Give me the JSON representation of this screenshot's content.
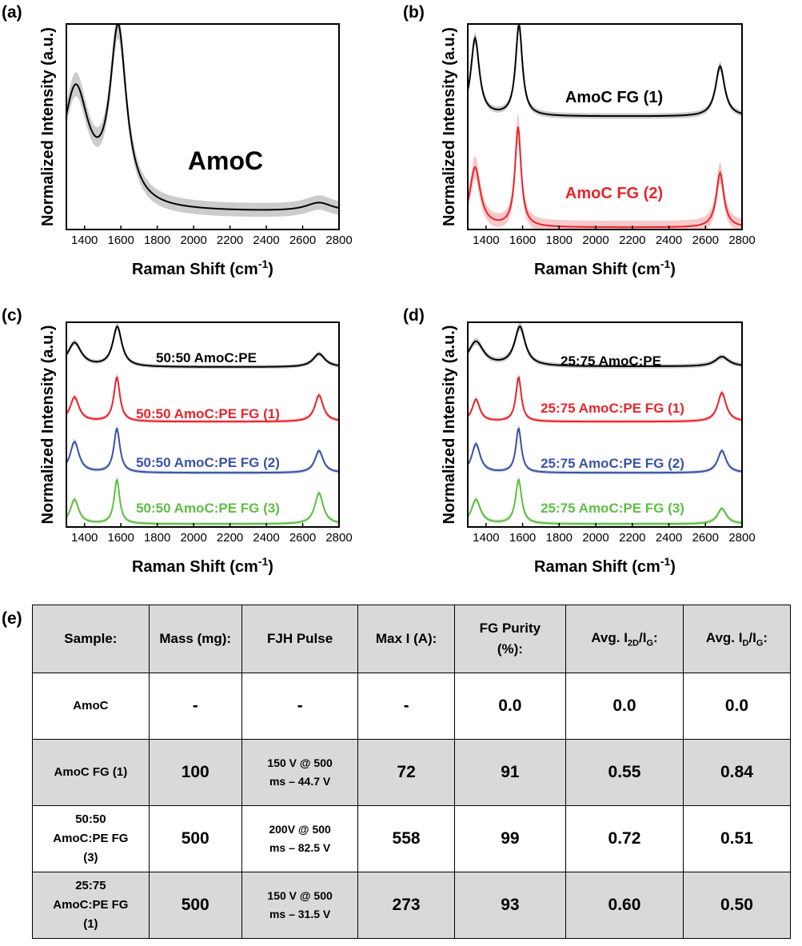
{
  "panels": [
    {
      "label": "(a)",
      "xlabel": "Raman Shift (cm",
      "xlabel_sup": "-1",
      "xlabel_end": ")",
      "ylabel": "Normalized Intensity (a.u.)",
      "ticks": [
        "1400",
        "1600",
        "1800",
        "2000",
        "2200",
        "2400",
        "2600",
        "2800"
      ],
      "annotations": [
        {
          "text": "AmoC",
          "color": "#000000"
        }
      ]
    },
    {
      "label": "(b)",
      "xlabel": "Raman Shift (cm",
      "xlabel_sup": "-1",
      "xlabel_end": ")",
      "ylabel": "Normalized Intensity (a.u.)",
      "ticks": [
        "1400",
        "1600",
        "1800",
        "2000",
        "2200",
        "2400",
        "2600",
        "2800"
      ],
      "annotations": [
        {
          "text": "AmoC FG (1)",
          "color": "#000000"
        },
        {
          "text": "AmoC FG (2)",
          "color": "#e8242b"
        }
      ]
    },
    {
      "label": "(c)",
      "xlabel": "Raman Shift (cm",
      "xlabel_sup": "-1",
      "xlabel_end": ")",
      "ylabel": "Normalized Intensity (a.u.)",
      "ticks": [
        "1400",
        "1600",
        "1800",
        "2000",
        "2200",
        "2400",
        "2600",
        "2800"
      ],
      "annotations": [
        {
          "text": "50:50 AmoC:PE",
          "color": "#000000"
        },
        {
          "text": "50:50 AmoC:PE FG (1)",
          "color": "#e8242b"
        },
        {
          "text": "50:50 AmoC:PE FG (2)",
          "color": "#3953a4"
        },
        {
          "text": "50:50 AmoC:PE FG (3)",
          "color": "#5ebd45"
        }
      ]
    },
    {
      "label": "(d)",
      "xlabel": "Raman Shift (cm",
      "xlabel_sup": "-1",
      "xlabel_end": ")",
      "ylabel": "Normalized Intensity (a.u.)",
      "ticks": [
        "1400",
        "1600",
        "1800",
        "2000",
        "2200",
        "2400",
        "2600",
        "2800"
      ],
      "annotations": [
        {
          "text": "25:75 AmoC:PE",
          "color": "#000000"
        },
        {
          "text": "25:75 AmoC:PE FG (1)",
          "color": "#e8242b"
        },
        {
          "text": "25:75 AmoC:PE FG (2)",
          "color": "#3953a4"
        },
        {
          "text": "25:75 AmoC:PE FG (3)",
          "color": "#5ebd45"
        }
      ]
    }
  ],
  "chart_data": [
    {
      "type": "line",
      "panel": "(a)",
      "xlabel": "Raman Shift (cm-1)",
      "ylabel": "Normalized Intensity (a.u.)",
      "xlim": [
        1300,
        2800
      ],
      "series": [
        {
          "name": "AmoC",
          "color": "#000000",
          "offset": 0,
          "scale": 1.0,
          "base": 0.08,
          "peaks": [
            {
              "center": 1350,
              "height": 0.55,
              "width": 90
            },
            {
              "center": 1585,
              "height": 0.8,
              "width": 55
            },
            {
              "center": 2690,
              "height": 0.04,
              "width": 90
            }
          ],
          "band": 0.05
        }
      ]
    },
    {
      "type": "line",
      "panel": "(b)",
      "xlabel": "Raman Shift (cm-1)",
      "ylabel": "Normalized Intensity (a.u.)",
      "xlim": [
        1300,
        2800
      ],
      "series": [
        {
          "name": "AmoC FG (1)",
          "color": "#000000",
          "offset": 0.55,
          "scale": 0.45,
          "base": 0.0,
          "peaks": [
            {
              "center": 1340,
              "height": 0.85,
              "width": 28
            },
            {
              "center": 1580,
              "height": 1.0,
              "width": 22
            },
            {
              "center": 2680,
              "height": 0.55,
              "width": 30
            }
          ],
          "band": 0.05
        },
        {
          "name": "AmoC FG (2)",
          "color": "#e8242b",
          "offset": 0.0,
          "scale": 0.5,
          "base": 0.02,
          "peaks": [
            {
              "center": 1340,
              "height": 0.6,
              "width": 35
            },
            {
              "center": 1575,
              "height": 1.0,
              "width": 20
            },
            {
              "center": 2680,
              "height": 0.55,
              "width": 25
            }
          ],
          "band": 0.1
        }
      ]
    },
    {
      "type": "line",
      "panel": "(c)",
      "xlabel": "Raman Shift (cm-1)",
      "ylabel": "Normalized Intensity (a.u.)",
      "xlim": [
        1300,
        2800
      ],
      "series": [
        {
          "name": "50:50 AmoC:PE",
          "color": "#000000",
          "offset": 0.76,
          "scale": 0.22,
          "base": 0.08,
          "peaks": [
            {
              "center": 1345,
              "height": 0.45,
              "width": 45
            },
            {
              "center": 1580,
              "height": 0.75,
              "width": 30
            },
            {
              "center": 2690,
              "height": 0.25,
              "width": 40
            }
          ],
          "band": 0.06
        },
        {
          "name": "50:50 AmoC:PE FG (1)",
          "color": "#e8242b",
          "offset": 0.51,
          "scale": 0.22,
          "base": 0.02,
          "peaks": [
            {
              "center": 1345,
              "height": 0.55,
              "width": 30
            },
            {
              "center": 1578,
              "height": 1.0,
              "width": 20
            },
            {
              "center": 2690,
              "height": 0.6,
              "width": 28
            }
          ],
          "band": 0.06
        },
        {
          "name": "50:50 AmoC:PE FG (2)",
          "color": "#3953a4",
          "offset": 0.26,
          "scale": 0.22,
          "base": 0.02,
          "peaks": [
            {
              "center": 1345,
              "height": 0.7,
              "width": 30
            },
            {
              "center": 1578,
              "height": 1.0,
              "width": 20
            },
            {
              "center": 2690,
              "height": 0.5,
              "width": 28
            }
          ],
          "band": 0.06
        },
        {
          "name": "50:50 AmoC:PE FG (3)",
          "color": "#5ebd45",
          "offset": 0.01,
          "scale": 0.22,
          "base": 0.02,
          "peaks": [
            {
              "center": 1345,
              "height": 0.55,
              "width": 28
            },
            {
              "center": 1578,
              "height": 1.0,
              "width": 18
            },
            {
              "center": 2690,
              "height": 0.7,
              "width": 28
            }
          ],
          "band": 0.06
        }
      ]
    },
    {
      "type": "line",
      "panel": "(d)",
      "xlabel": "Raman Shift (cm-1)",
      "ylabel": "Normalized Intensity (a.u.)",
      "xlim": [
        1300,
        2800
      ],
      "series": [
        {
          "name": "25:75 AmoC:PE",
          "color": "#000000",
          "offset": 0.76,
          "scale": 0.22,
          "base": 0.1,
          "peaks": [
            {
              "center": 1345,
              "height": 0.5,
              "width": 50
            },
            {
              "center": 1585,
              "height": 0.8,
              "width": 35
            },
            {
              "center": 2690,
              "height": 0.2,
              "width": 45
            }
          ],
          "band": 0.07
        },
        {
          "name": "25:75 AmoC:PE FG (1)",
          "color": "#e8242b",
          "offset": 0.51,
          "scale": 0.22,
          "base": 0.02,
          "peaks": [
            {
              "center": 1345,
              "height": 0.5,
              "width": 25
            },
            {
              "center": 1578,
              "height": 1.0,
              "width": 18
            },
            {
              "center": 2690,
              "height": 0.65,
              "width": 28
            }
          ],
          "band": 0.06
        },
        {
          "name": "25:75 AmoC:PE FG (2)",
          "color": "#3953a4",
          "offset": 0.26,
          "scale": 0.22,
          "base": 0.02,
          "peaks": [
            {
              "center": 1345,
              "height": 0.65,
              "width": 28
            },
            {
              "center": 1578,
              "height": 1.0,
              "width": 18
            },
            {
              "center": 2690,
              "height": 0.5,
              "width": 28
            }
          ],
          "band": 0.06
        },
        {
          "name": "25:75 AmoC:PE FG (3)",
          "color": "#5ebd45",
          "offset": 0.01,
          "scale": 0.22,
          "base": 0.02,
          "peaks": [
            {
              "center": 1345,
              "height": 0.55,
              "width": 30
            },
            {
              "center": 1578,
              "height": 1.0,
              "width": 20
            },
            {
              "center": 2690,
              "height": 0.35,
              "width": 30
            }
          ],
          "band": 0.07
        }
      ]
    },
    {
      "type": "table",
      "panel": "(e)"
    }
  ],
  "table": {
    "label": "(e)",
    "headers": {
      "sample": "Sample:",
      "mass": "Mass (mg):",
      "pulse": "FJH Pulse",
      "maxi": "Max I (A):",
      "purity": "FG Purity\n(%):",
      "i2d_pre": "Avg. I",
      "i2d_sub": "2D",
      "i2d_mid": "/I",
      "i2d_sub2": "G",
      "i2d_end": ":",
      "id_pre": "Avg. I",
      "id_sub": "D",
      "id_mid": "/I",
      "id_sub2": "G",
      "id_end": ":"
    },
    "rows": [
      {
        "sample": "AmoC",
        "mass": "-",
        "pulse": "-",
        "maxi": "-",
        "purity": "0.0",
        "i2d": "0.0",
        "id": "0.0"
      },
      {
        "sample": "AmoC FG (1)",
        "mass": "100",
        "pulse": "150 V @ 500\nms – 44.7 V",
        "maxi": "72",
        "purity": "91",
        "i2d": "0.55",
        "id": "0.84"
      },
      {
        "sample": "50:50\nAmoC:PE FG\n(3)",
        "mass": "500",
        "pulse": "200V @ 500\nms – 82.5 V",
        "maxi": "558",
        "purity": "99",
        "i2d": "0.72",
        "id": "0.51"
      },
      {
        "sample": "25:75\nAmoC:PE FG\n(1)",
        "mass": "500",
        "pulse": "150 V @ 500\nms – 31.5 V",
        "maxi": "273",
        "purity": "93",
        "i2d": "0.60",
        "id": "0.50"
      }
    ]
  }
}
